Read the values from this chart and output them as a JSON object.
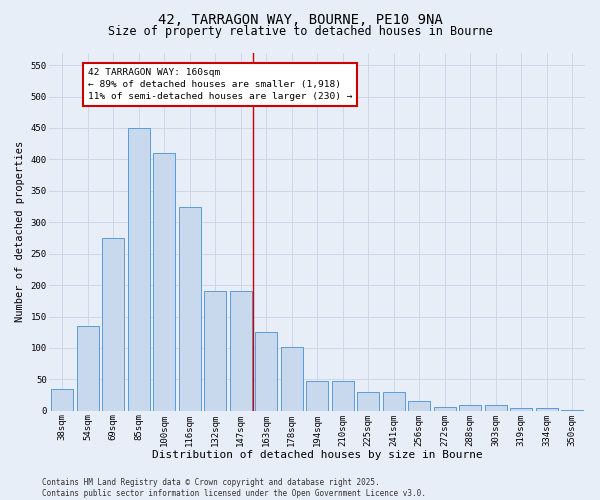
{
  "title": "42, TARRAGON WAY, BOURNE, PE10 9NA",
  "subtitle": "Size of property relative to detached houses in Bourne",
  "xlabel": "Distribution of detached houses by size in Bourne",
  "ylabel": "Number of detached properties",
  "categories": [
    "38sqm",
    "54sqm",
    "69sqm",
    "85sqm",
    "100sqm",
    "116sqm",
    "132sqm",
    "147sqm",
    "163sqm",
    "178sqm",
    "194sqm",
    "210sqm",
    "225sqm",
    "241sqm",
    "256sqm",
    "272sqm",
    "288sqm",
    "303sqm",
    "319sqm",
    "334sqm",
    "350sqm"
  ],
  "values": [
    35,
    135,
    275,
    450,
    410,
    325,
    190,
    190,
    125,
    102,
    47,
    47,
    30,
    30,
    15,
    6,
    9,
    10,
    5,
    4,
    2
  ],
  "bar_color": "#c8d9ed",
  "bar_edge_color": "#5b9bd5",
  "grid_color": "#cdd7e8",
  "background_color": "#e8eef8",
  "vline_color": "#cc0000",
  "annotation_text": "42 TARRAGON WAY: 160sqm\n← 89% of detached houses are smaller (1,918)\n11% of semi-detached houses are larger (230) →",
  "annotation_box_edgecolor": "#cc0000",
  "annotation_box_facecolor": "#ffffff",
  "ylim": [
    0,
    570
  ],
  "yticks": [
    0,
    50,
    100,
    150,
    200,
    250,
    300,
    350,
    400,
    450,
    500,
    550
  ],
  "footer": "Contains HM Land Registry data © Crown copyright and database right 2025.\nContains public sector information licensed under the Open Government Licence v3.0.",
  "title_fontsize": 10,
  "subtitle_fontsize": 8.5,
  "xlabel_fontsize": 8,
  "ylabel_fontsize": 7.5,
  "tick_fontsize": 6.5,
  "annot_fontsize": 6.8,
  "footer_fontsize": 5.5
}
